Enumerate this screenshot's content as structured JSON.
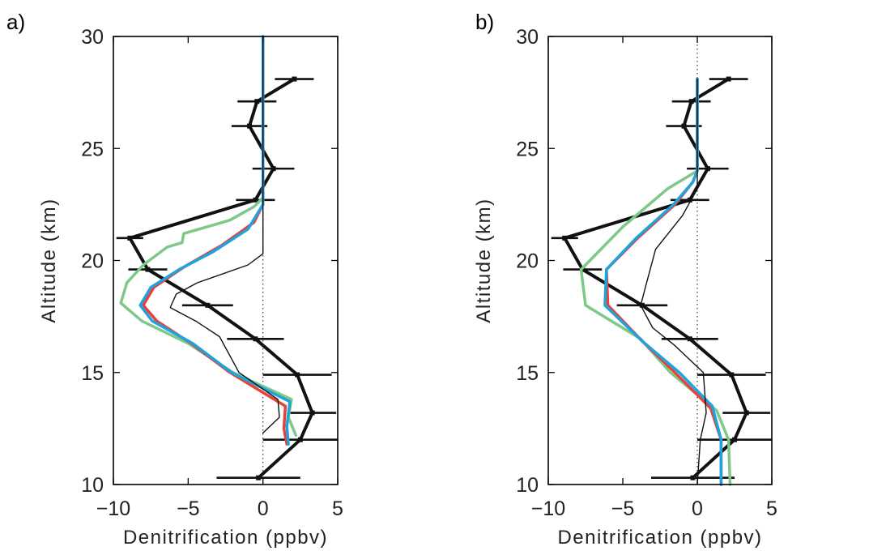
{
  "chart_data": [
    {
      "panel_label": "a)",
      "type": "line",
      "xlabel": "Denitrification    (ppbv)",
      "ylabel": "Altitude  (km)",
      "xlim": [
        -10,
        5
      ],
      "ylim": [
        10,
        30
      ],
      "xticks": [
        "−10",
        "−5",
        "0",
        "5"
      ],
      "yticks": [
        "10",
        "15",
        "20",
        "25",
        "30"
      ],
      "series": [
        {
          "color": "#111111",
          "width": "thick",
          "errorbars": true,
          "x": [
            -0.3,
            2.5,
            3.3,
            2.3,
            -0.5,
            -3.7,
            -7.7,
            -8.9,
            -0.5,
            0.7,
            -0.9,
            -0.4,
            2.1
          ],
          "y": [
            10.3,
            12.0,
            13.2,
            14.9,
            16.5,
            18.0,
            19.6,
            21.0,
            22.7,
            24.1,
            26.0,
            27.1,
            28.1
          ],
          "xerr": [
            2.8,
            2.5,
            1.6,
            2.3,
            1.9,
            1.7,
            1.3,
            0.9,
            1.3,
            1.4,
            1.2,
            1.3,
            1.3
          ]
        },
        {
          "color": "#7ec888",
          "width": "medium",
          "x": [
            2.2,
            1.7,
            1.9,
            -2.0,
            -5.0,
            -8.1,
            -9.5,
            -9.1,
            -8.0,
            -6.4,
            -5.4,
            -5.3,
            -2.2,
            -0.6,
            0.0,
            0.0,
            0.0
          ],
          "y": [
            12.2,
            13.0,
            13.8,
            15.0,
            16.3,
            17.3,
            18.1,
            19.0,
            19.8,
            20.6,
            20.8,
            21.2,
            21.8,
            22.4,
            22.8,
            25.0,
            30.0
          ]
        },
        {
          "color": "#e8403a",
          "width": "medium",
          "x": [
            1.6,
            1.4,
            1.5,
            -2.2,
            -4.8,
            -7.1,
            -8.0,
            -7.3,
            -5.3,
            -2.7,
            -0.6,
            0.0,
            0.0,
            0.0
          ],
          "y": [
            11.8,
            12.5,
            13.5,
            15.0,
            16.3,
            17.3,
            18.0,
            18.8,
            19.7,
            20.7,
            21.7,
            22.5,
            25.0,
            30.0
          ]
        },
        {
          "color": "#1fa3dc",
          "width": "medium",
          "x": [
            1.7,
            1.6,
            1.8,
            -2.1,
            -4.7,
            -7.4,
            -8.2,
            -7.5,
            -5.6,
            -3.3,
            -1.0,
            0.0,
            0.0,
            0.0
          ],
          "y": [
            11.8,
            12.6,
            13.7,
            15.0,
            16.3,
            17.3,
            18.0,
            18.8,
            19.6,
            20.4,
            21.4,
            22.5,
            25.0,
            30.0
          ]
        },
        {
          "color": "#111111",
          "width": "thin",
          "x": [
            0.0,
            1.1,
            1.0,
            -1.6,
            -2.9,
            -4.5,
            -6.2,
            -5.8,
            -4.4,
            -1.0,
            0.0,
            0.0
          ],
          "y": [
            12.3,
            13.0,
            13.8,
            15.0,
            16.6,
            17.3,
            17.9,
            18.5,
            19.0,
            19.8,
            20.3,
            30.0
          ]
        }
      ]
    },
    {
      "panel_label": "b)",
      "type": "line",
      "xlabel": "Denitrification    (ppbv)",
      "ylabel": "Altitude  (km)",
      "xlim": [
        -10,
        5
      ],
      "ylim": [
        10,
        30
      ],
      "xticks": [
        "−10",
        "−5",
        "0",
        "5"
      ],
      "yticks": [
        "10",
        "15",
        "20",
        "25",
        "30"
      ],
      "series": [
        {
          "color": "#111111",
          "width": "thick",
          "errorbars": true,
          "x": [
            -0.3,
            2.5,
            3.3,
            2.3,
            -0.5,
            -3.7,
            -7.7,
            -8.9,
            -0.5,
            0.7,
            -0.9,
            -0.4,
            2.1
          ],
          "y": [
            10.3,
            12.0,
            13.2,
            14.9,
            16.5,
            18.0,
            19.6,
            21.0,
            22.7,
            24.1,
            26.0,
            27.1,
            28.1
          ],
          "xerr": [
            2.8,
            2.5,
            1.6,
            2.3,
            1.9,
            1.7,
            1.3,
            0.9,
            1.3,
            1.4,
            1.2,
            1.3,
            1.3
          ]
        },
        {
          "color": "#7ec888",
          "width": "medium",
          "x": [
            2.2,
            2.1,
            1.3,
            -1.8,
            -3.8,
            -7.5,
            -7.8,
            -5.0,
            -2.0,
            0.0,
            0.0
          ],
          "y": [
            10.0,
            12.0,
            13.3,
            15.0,
            16.5,
            18.0,
            19.6,
            21.5,
            23.2,
            24.0,
            28.1
          ]
        },
        {
          "color": "#e8403a",
          "width": "medium",
          "x": [
            1.6,
            1.6,
            0.9,
            -1.5,
            -3.7,
            -6.0,
            -6.1,
            -4.0,
            -1.5,
            -0.3,
            0.0,
            0.0
          ],
          "y": [
            10.0,
            12.0,
            13.4,
            15.0,
            16.4,
            18.0,
            19.6,
            21.0,
            22.5,
            23.5,
            24.0,
            28.1
          ]
        },
        {
          "color": "#1fa3dc",
          "width": "medium",
          "x": [
            1.6,
            1.6,
            1.0,
            -1.2,
            -3.7,
            -6.2,
            -6.1,
            -4.1,
            -1.6,
            -0.3,
            0.0,
            0.0
          ],
          "y": [
            10.0,
            12.0,
            13.5,
            15.0,
            16.4,
            18.0,
            19.6,
            21.0,
            22.5,
            23.5,
            24.0,
            28.1
          ]
        },
        {
          "color": "#111111",
          "width": "thin",
          "x": [
            0.0,
            0.2,
            0.6,
            0.4,
            -1.5,
            -3.0,
            -3.8,
            -3.4,
            -2.8,
            -1.0,
            0.0,
            0.0
          ],
          "y": [
            10.0,
            12.0,
            13.2,
            15.0,
            16.2,
            17.0,
            18.0,
            19.0,
            20.5,
            22.0,
            23.2,
            28.1
          ]
        }
      ]
    }
  ]
}
